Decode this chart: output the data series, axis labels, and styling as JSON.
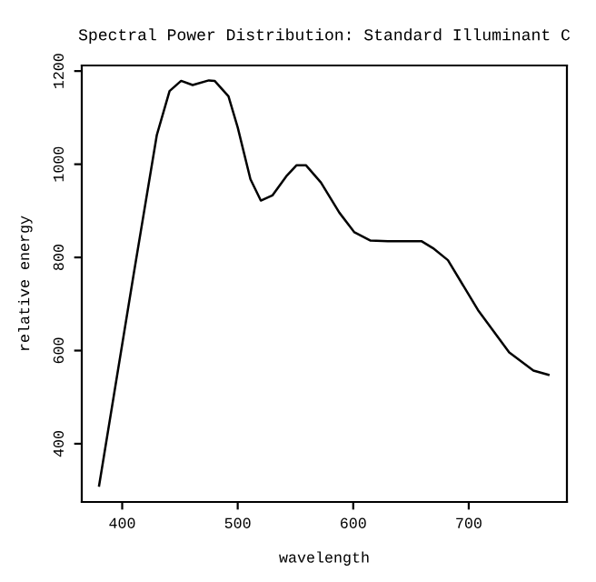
{
  "chart_data": {
    "type": "line",
    "title": "Spectral Power Distribution: Standard Illuminant C",
    "xlabel": "wavelength",
    "ylabel": "relative energy",
    "x": [
      380,
      410,
      430,
      441,
      451,
      461,
      475,
      480,
      492,
      500,
      511,
      520,
      530,
      542,
      551,
      559,
      572,
      588,
      601,
      615,
      630,
      659,
      669,
      682,
      708,
      735,
      756,
      769
    ],
    "series": [
      {
        "color": "#000000",
        "values": [
          310,
          765,
          1063,
          1157,
          1179,
          1170,
          1180,
          1179,
          1146,
          1079,
          968,
          922,
          933,
          974,
          998,
          998,
          961,
          896,
          854,
          836,
          835,
          835,
          820,
          794,
          687,
          596,
          557,
          548
        ]
      }
    ],
    "xlim": [
      365,
      785
    ],
    "ylim": [
      275,
      1212
    ],
    "xticks": [
      400,
      500,
      600,
      700
    ],
    "yticks": [
      400,
      600,
      800,
      1000,
      1200
    ],
    "grid": false,
    "marker": "none",
    "line_style": "solid"
  }
}
